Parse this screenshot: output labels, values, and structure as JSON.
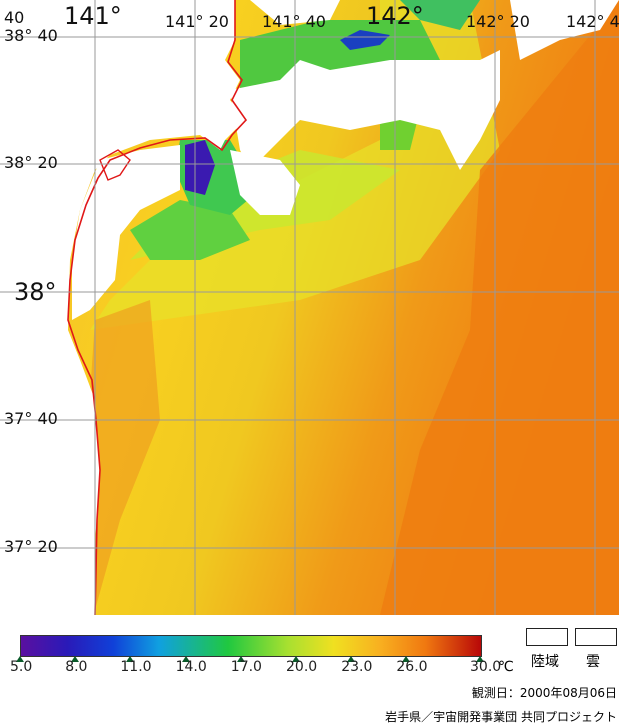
{
  "map": {
    "lon_labels": [
      "141°",
      "141° 20",
      "141° 40",
      "142°",
      "142° 20",
      "142° 4"
    ],
    "lat_labels": [
      "38° 40",
      "38° 20",
      "38°",
      "37° 40",
      "37° 20"
    ],
    "corner_label": "40"
  },
  "colorbar": {
    "ticks": [
      "5.0",
      "8.0",
      "11.0",
      "14.0",
      "17.0",
      "20.0",
      "23.0",
      "26.0",
      "30.0"
    ],
    "unit": "℃",
    "range": [
      5.0,
      30.0
    ]
  },
  "legend": {
    "land": "陸域",
    "cloud": "雲"
  },
  "observation": "観測日：2000年08月06日",
  "credit": "岩手県／宇宙開発事業団 共同プロジェクト",
  "colors": {
    "coast": "#e01818",
    "grid": "#999999",
    "sea_warm": "#f08a10",
    "sea_mid": "#f8c020",
    "sea_cool": "#d8e830",
    "cold": "#30c850",
    "very_cold": "#2020b0"
  }
}
